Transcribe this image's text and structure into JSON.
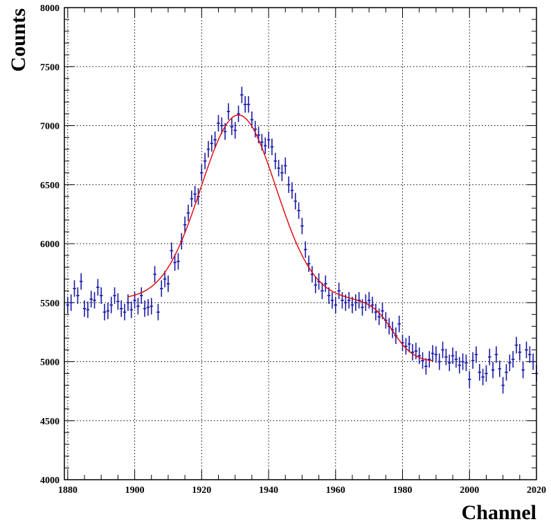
{
  "chart_data": {
    "type": "scatter",
    "xlabel": "Channel",
    "ylabel": "Counts",
    "xlim": [
      1879,
      2020
    ],
    "ylim": [
      4000,
      8000
    ],
    "grid": true,
    "xticks": [
      1880,
      1900,
      1920,
      1940,
      1960,
      1980,
      2000,
      2020
    ],
    "yticks": [
      4000,
      4500,
      5000,
      5500,
      6000,
      6500,
      7000,
      7500,
      8000
    ],
    "points_color": "#1a1aa6",
    "fit_color": "#e00000",
    "error": 70,
    "x": [
      1880,
      1881,
      1882,
      1883,
      1884,
      1885,
      1886,
      1887,
      1888,
      1889,
      1890,
      1891,
      1892,
      1893,
      1894,
      1895,
      1896,
      1897,
      1898,
      1899,
      1900,
      1901,
      1902,
      1903,
      1904,
      1905,
      1906,
      1907,
      1908,
      1909,
      1910,
      1911,
      1912,
      1913,
      1914,
      1915,
      1916,
      1917,
      1918,
      1919,
      1920,
      1921,
      1922,
      1923,
      1924,
      1925,
      1926,
      1927,
      1928,
      1929,
      1930,
      1931,
      1932,
      1933,
      1934,
      1935,
      1936,
      1937,
      1938,
      1939,
      1940,
      1941,
      1942,
      1943,
      1944,
      1945,
      1946,
      1947,
      1948,
      1949,
      1950,
      1951,
      1952,
      1953,
      1954,
      1955,
      1956,
      1957,
      1958,
      1959,
      1960,
      1961,
      1962,
      1963,
      1964,
      1965,
      1966,
      1967,
      1968,
      1969,
      1970,
      1971,
      1972,
      1973,
      1974,
      1975,
      1976,
      1977,
      1978,
      1979,
      1980,
      1981,
      1982,
      1983,
      1984,
      1985,
      1986,
      1987,
      1988,
      1989,
      1990,
      1991,
      1992,
      1993,
      1994,
      1995,
      1996,
      1997,
      1998,
      1999,
      2000,
      2001,
      2002,
      2003,
      2004,
      2005,
      2006,
      2007,
      2008,
      2009,
      2010,
      2011,
      2012,
      2013,
      2014,
      2015,
      2016,
      2017,
      2018,
      2019,
      2020
    ],
    "y": [
      5480,
      5500,
      5620,
      5560,
      5680,
      5450,
      5440,
      5530,
      5520,
      5630,
      5560,
      5420,
      5430,
      5480,
      5560,
      5510,
      5450,
      5420,
      5500,
      5440,
      5520,
      5470,
      5560,
      5450,
      5460,
      5470,
      5740,
      5420,
      5620,
      5700,
      5660,
      5940,
      5840,
      5850,
      6020,
      6160,
      6260,
      6380,
      6420,
      6400,
      6600,
      6700,
      6800,
      6850,
      6880,
      7020,
      7000,
      6950,
      7120,
      6990,
      6960,
      7100,
      7260,
      7180,
      7180,
      7050,
      6970,
      6920,
      6860,
      6830,
      6880,
      6820,
      6700,
      6640,
      6600,
      6660,
      6500,
      6450,
      6360,
      6280,
      6150,
      5950,
      5830,
      5740,
      5650,
      5680,
      5600,
      5660,
      5560,
      5520,
      5480,
      5600,
      5520,
      5500,
      5520,
      5480,
      5500,
      5520,
      5460,
      5500,
      5520,
      5480,
      5420,
      5380,
      5430,
      5350,
      5300,
      5270,
      5220,
      5320,
      5160,
      5130,
      5150,
      5080,
      5090,
      5050,
      5010,
      4960,
      5020,
      5070,
      5060,
      5000,
      5100,
      5040,
      4990,
      5050,
      5020,
      4970,
      5000,
      4990,
      4850,
      5010,
      5060,
      4910,
      4870,
      4900,
      5040,
      4930,
      5060,
      4940,
      4800,
      4910,
      4990,
      5020,
      5140,
      5080,
      4930,
      5100,
      5060,
      5000,
      4900
    ]
  }
}
